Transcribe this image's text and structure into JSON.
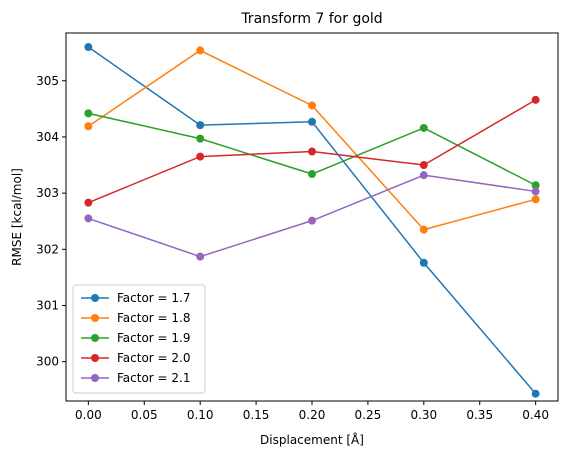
{
  "chart_data": {
    "type": "line",
    "title": "Transform 7 for gold",
    "xlabel": "Displacement [Å]",
    "ylabel": "RMSE [kcal/mol]",
    "xlim": [
      -0.02,
      0.42
    ],
    "ylim": [
      299.3,
      305.85
    ],
    "x_ticks": [
      0.0,
      0.05,
      0.1,
      0.15,
      0.2,
      0.25,
      0.3,
      0.35,
      0.4
    ],
    "x_tick_labels": [
      "0.00",
      "0.05",
      "0.10",
      "0.15",
      "0.20",
      "0.25",
      "0.30",
      "0.35",
      "0.40"
    ],
    "y_ticks": [
      300,
      301,
      302,
      303,
      304,
      305
    ],
    "y_tick_labels": [
      "300",
      "301",
      "302",
      "303",
      "304",
      "305"
    ],
    "grid": false,
    "legend_position": "lower-left",
    "x": [
      0.0,
      0.1,
      0.2,
      0.3,
      0.4
    ],
    "series": [
      {
        "name": "Factor = 1.7",
        "color": "#1f77b4",
        "values": [
          305.6,
          304.21,
          304.27,
          301.76,
          299.43
        ]
      },
      {
        "name": "Factor = 1.8",
        "color": "#ff7f0e",
        "values": [
          304.19,
          305.54,
          304.56,
          302.35,
          302.89
        ]
      },
      {
        "name": "Factor = 1.9",
        "color": "#2ca02c",
        "values": [
          304.42,
          303.97,
          303.34,
          304.16,
          303.14
        ]
      },
      {
        "name": "Factor = 2.0",
        "color": "#d62728",
        "values": [
          302.83,
          303.65,
          303.74,
          303.5,
          304.66
        ]
      },
      {
        "name": "Factor = 2.1",
        "color": "#9467bd",
        "values": [
          302.55,
          301.87,
          302.51,
          303.32,
          303.03
        ]
      }
    ]
  }
}
